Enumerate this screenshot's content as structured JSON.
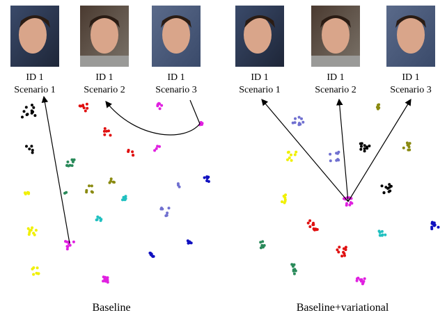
{
  "panels": [
    {
      "labels": [
        {
          "id": "ID 1",
          "scenario": "Scenario 1"
        },
        {
          "id": "ID 1",
          "scenario": "Scenario 2"
        },
        {
          "id": "ID 1",
          "scenario": "Scenario 3"
        }
      ],
      "caption": "Baseline"
    },
    {
      "labels": [
        {
          "id": "ID 1",
          "scenario": "Scenario 1"
        },
        {
          "id": "ID 1",
          "scenario": "Scenario 2"
        },
        {
          "id": "ID 1",
          "scenario": "Scenario 3"
        }
      ],
      "caption": "Baseline+variational"
    }
  ]
}
